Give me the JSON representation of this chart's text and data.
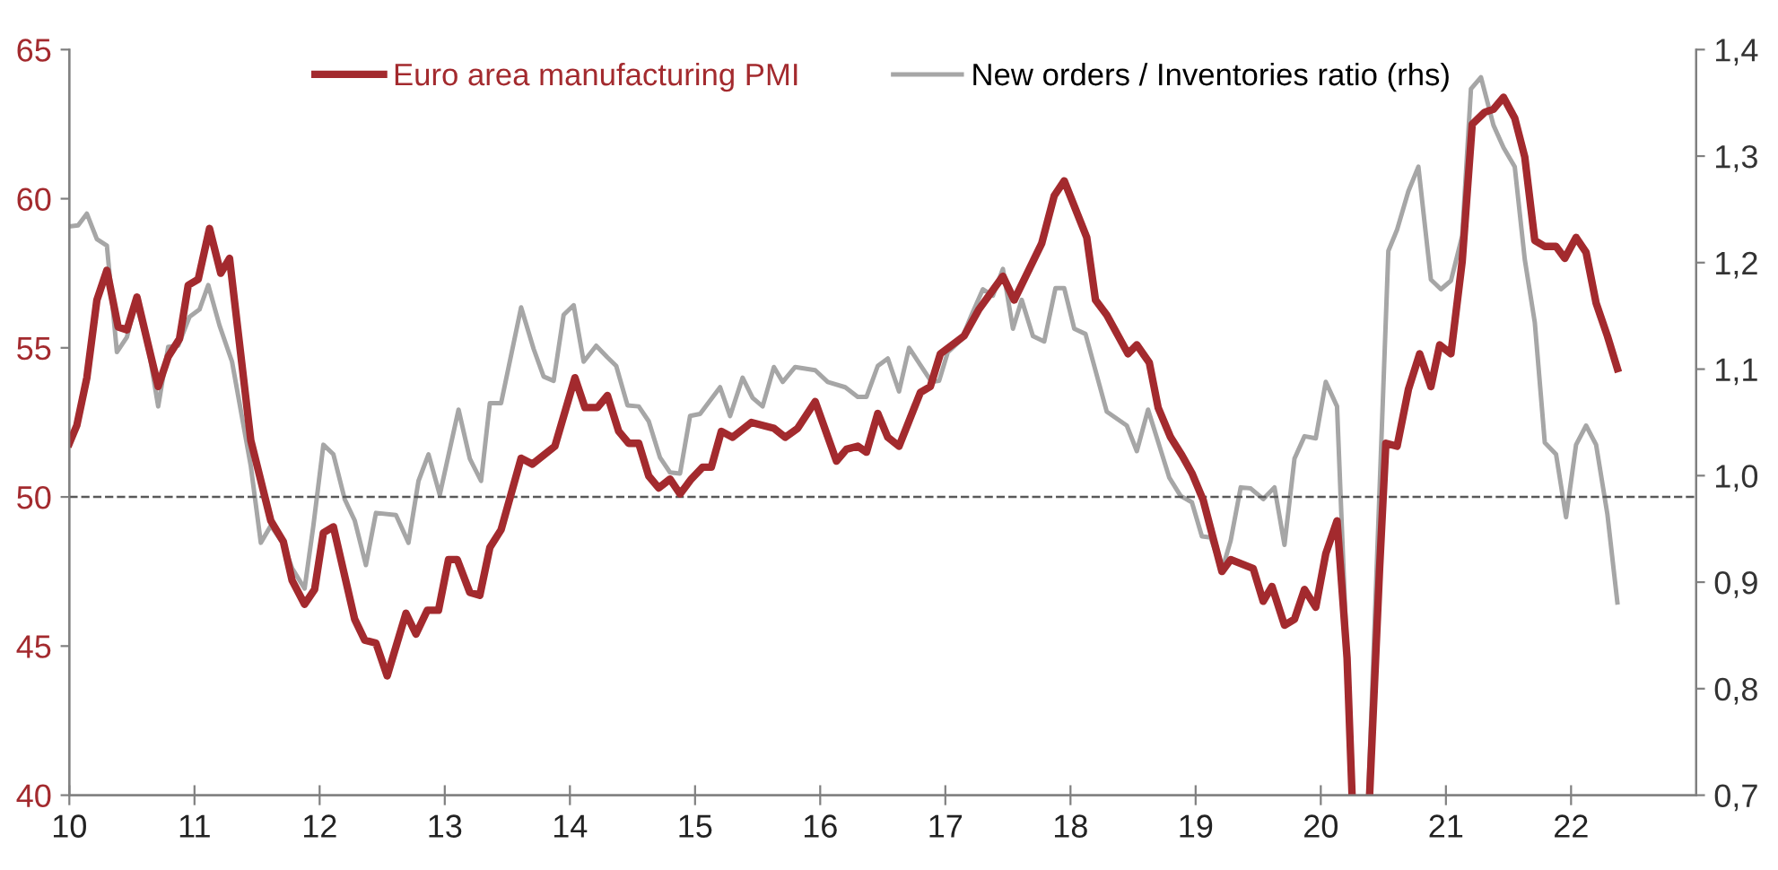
{
  "chart_data": {
    "type": "line",
    "xlim": [
      10,
      23
    ],
    "xticks": [
      10,
      11,
      12,
      13,
      14,
      15,
      16,
      17,
      18,
      19,
      20,
      21,
      22
    ],
    "ylim": [
      40,
      65
    ],
    "yticks": [
      40,
      45,
      50,
      55,
      60,
      65
    ],
    "y2lim": [
      0.7,
      1.4
    ],
    "y2ticks": [
      {
        "value": 0.7,
        "label": "0,7"
      },
      {
        "value": 0.8,
        "label": "0,8"
      },
      {
        "value": 0.9,
        "label": "0,9"
      },
      {
        "value": 1.0,
        "label": "1,0"
      },
      {
        "value": 1.1,
        "label": "1,1"
      },
      {
        "value": 1.2,
        "label": "1,2"
      },
      {
        "value": 1.3,
        "label": "1,3"
      },
      {
        "value": 1.4,
        "label": "1,4"
      }
    ],
    "grid": false,
    "legend": "top",
    "marker": "none",
    "line_style": "solid",
    "ref_lines": [
      {
        "axis": "y",
        "value": 50,
        "label": null,
        "color": "#595959",
        "line_style": "dashed"
      }
    ],
    "series": [
      {
        "name": "Euro area manufacturing PMI",
        "color": "#a32a2e",
        "axis": "y",
        "x": [
          10.0,
          10.06,
          10.14,
          10.22,
          10.3,
          10.39,
          10.46,
          10.54,
          10.63,
          10.71,
          10.79,
          10.88,
          10.95,
          11.03,
          11.12,
          11.21,
          11.28,
          11.45,
          11.61,
          11.71,
          11.78,
          11.88,
          11.96,
          12.03,
          12.11,
          12.28,
          12.36,
          12.45,
          12.54,
          12.69,
          12.77,
          12.86,
          12.95,
          13.03,
          13.1,
          13.2,
          13.28,
          13.36,
          13.45,
          13.61,
          13.7,
          13.88,
          14.04,
          14.12,
          14.22,
          14.3,
          14.39,
          14.47,
          14.55,
          14.63,
          14.71,
          14.8,
          14.88,
          14.97,
          15.06,
          15.13,
          15.21,
          15.3,
          15.45,
          15.63,
          15.72,
          15.82,
          15.96,
          16.13,
          16.21,
          16.3,
          16.37,
          16.46,
          16.54,
          16.63,
          16.8,
          16.88,
          16.96,
          17.15,
          17.27,
          17.46,
          17.55,
          17.77,
          17.87,
          17.95,
          18.13,
          18.2,
          18.29,
          18.46,
          18.53,
          18.63,
          18.7,
          18.8,
          18.89,
          18.97,
          19.06,
          19.21,
          19.28,
          19.46,
          19.54,
          19.61,
          19.71,
          19.79,
          19.87,
          19.96,
          20.04,
          20.13,
          20.21,
          20.25,
          20.32,
          20.39,
          20.47,
          20.52,
          20.61,
          20.7,
          20.79,
          20.88,
          20.95,
          21.04,
          21.13,
          21.21,
          21.31,
          21.38,
          21.46,
          21.55,
          21.63,
          21.71,
          21.79,
          21.88,
          21.95,
          22.04,
          22.12,
          22.2,
          22.29,
          22.37
        ],
        "values": [
          51.8,
          52.4,
          54.0,
          56.6,
          57.6,
          55.7,
          55.6,
          56.7,
          55.1,
          53.7,
          54.7,
          55.3,
          57.1,
          57.3,
          59.0,
          57.5,
          58.0,
          51.9,
          49.2,
          48.5,
          47.2,
          46.4,
          46.9,
          48.8,
          49.0,
          45.9,
          45.2,
          45.1,
          44.0,
          46.1,
          45.4,
          46.2,
          46.2,
          47.9,
          47.9,
          46.8,
          46.7,
          48.3,
          48.9,
          51.3,
          51.1,
          51.7,
          54.0,
          53.0,
          53.0,
          53.4,
          52.2,
          51.8,
          51.8,
          50.7,
          50.3,
          50.6,
          50.1,
          50.6,
          51.0,
          51.0,
          52.2,
          52.0,
          52.5,
          52.3,
          52.0,
          52.3,
          53.2,
          51.2,
          51.6,
          51.7,
          51.5,
          52.8,
          52.0,
          51.7,
          53.5,
          53.7,
          54.8,
          55.4,
          56.3,
          57.4,
          56.6,
          58.5,
          60.1,
          60.6,
          58.7,
          56.6,
          56.1,
          54.8,
          55.1,
          54.5,
          53.0,
          52.0,
          51.4,
          50.8,
          49.9,
          47.5,
          47.9,
          47.6,
          46.5,
          47.0,
          45.7,
          45.9,
          46.9,
          46.3,
          48.1,
          49.2,
          44.6,
          40.0,
          null,
          40.0,
          47.6,
          51.8,
          51.7,
          53.6,
          54.8,
          53.7,
          55.1,
          54.8,
          57.9,
          62.5,
          62.9,
          63.0,
          63.4,
          62.7,
          61.4,
          58.6,
          58.4,
          58.4,
          58.0,
          58.7,
          58.2,
          56.5,
          55.4,
          54.3
        ]
      },
      {
        "name": "New orders / Inventories ratio (rhs)",
        "color": "#a6a6a6",
        "axis": "y2",
        "x": [
          10.0,
          10.07,
          10.14,
          10.22,
          10.3,
          10.38,
          10.46,
          10.53,
          10.63,
          10.71,
          10.79,
          10.87,
          10.96,
          11.04,
          11.11,
          11.2,
          11.3,
          11.45,
          11.53,
          11.61,
          11.71,
          11.78,
          11.88,
          11.95,
          12.03,
          12.11,
          12.2,
          12.28,
          12.37,
          12.45,
          12.61,
          12.71,
          12.79,
          12.87,
          12.96,
          13.11,
          13.2,
          13.29,
          13.36,
          13.45,
          13.61,
          13.71,
          13.79,
          13.87,
          13.95,
          14.03,
          14.11,
          14.21,
          14.3,
          14.37,
          14.46,
          14.55,
          14.63,
          14.72,
          14.8,
          14.88,
          14.96,
          15.04,
          15.2,
          15.28,
          15.38,
          15.46,
          15.54,
          15.63,
          15.7,
          15.8,
          15.96,
          16.06,
          16.2,
          16.3,
          16.37,
          16.46,
          16.54,
          16.63,
          16.71,
          16.8,
          16.89,
          16.95,
          17.02,
          17.13,
          17.21,
          17.3,
          17.38,
          17.46,
          17.54,
          17.61,
          17.7,
          17.79,
          17.88,
          17.95,
          18.03,
          18.12,
          18.29,
          18.45,
          18.53,
          18.62,
          18.79,
          18.88,
          18.97,
          19.05,
          19.12,
          19.21,
          19.28,
          19.36,
          19.44,
          19.54,
          19.63,
          19.71,
          19.79,
          19.87,
          19.96,
          20.04,
          20.13,
          20.21,
          20.25,
          20.32,
          20.38,
          20.54,
          20.61,
          20.7,
          20.78,
          20.88,
          20.96,
          21.04,
          21.13,
          21.2,
          21.28,
          21.38,
          21.46,
          21.55,
          21.63,
          21.71,
          21.79,
          21.88,
          21.96,
          22.04,
          22.12,
          22.2,
          22.29,
          22.37
        ],
        "values": [
          1.234,
          1.235,
          1.246,
          1.222,
          1.216,
          1.116,
          1.13,
          1.163,
          1.121,
          1.065,
          1.121,
          1.122,
          1.149,
          1.156,
          1.179,
          1.141,
          1.107,
          1.009,
          0.937,
          0.953,
          0.936,
          0.913,
          0.894,
          0.953,
          1.029,
          1.02,
          0.978,
          0.958,
          0.916,
          0.965,
          0.963,
          0.937,
          0.995,
          1.02,
          0.982,
          1.062,
          1.016,
          0.995,
          1.068,
          1.068,
          1.158,
          1.119,
          1.093,
          1.089,
          1.151,
          1.16,
          1.107,
          1.122,
          1.111,
          1.103,
          1.066,
          1.065,
          1.051,
          1.017,
          1.003,
          1.002,
          1.056,
          1.058,
          1.083,
          1.056,
          1.092,
          1.073,
          1.065,
          1.102,
          1.088,
          1.102,
          1.099,
          1.088,
          1.083,
          1.074,
          1.074,
          1.103,
          1.11,
          1.079,
          1.12,
          1.104,
          1.088,
          1.089,
          1.116,
          1.128,
          1.151,
          1.175,
          1.169,
          1.194,
          1.138,
          1.165,
          1.131,
          1.126,
          1.176,
          1.176,
          1.138,
          1.133,
          1.06,
          1.047,
          1.023,
          1.062,
          0.998,
          0.981,
          0.975,
          0.943,
          0.942,
          0.911,
          0.939,
          0.989,
          0.988,
          0.978,
          0.989,
          0.935,
          1.016,
          1.037,
          1.035,
          1.088,
          1.065,
          0.829,
          0.7,
          null,
          0.7,
          1.211,
          1.231,
          1.267,
          1.29,
          1.184,
          1.175,
          1.183,
          1.225,
          1.363,
          1.374,
          1.329,
          1.308,
          1.29,
          1.203,
          1.144,
          1.031,
          1.02,
          0.961,
          1.029,
          1.047,
          1.029,
          0.964,
          0.881
        ]
      }
    ]
  }
}
